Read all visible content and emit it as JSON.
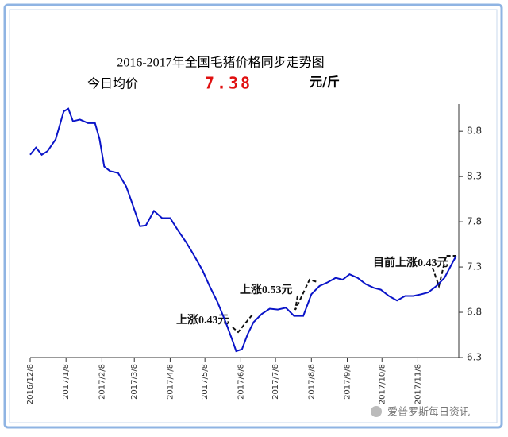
{
  "chart_data": {
    "type": "line",
    "title": "2016-2017年全国毛猪价格同步走势图",
    "price_label": "今日均价",
    "price": "7.38",
    "price_unit": "元/斤",
    "annotations": [
      "上涨0.43元",
      "上涨0.53元",
      "目前上涨0.43元"
    ],
    "watermark": "爱普罗斯每日资讯",
    "x": [
      "2016/12/8",
      "2016/12/13",
      "2016/12/18",
      "2016/12/23",
      "2016/12/30",
      "2017/1/6",
      "2017/1/10",
      "2017/1/14",
      "2017/1/20",
      "2017/1/27",
      "2017/2/2",
      "2017/2/6",
      "2017/2/10",
      "2017/2/15",
      "2017/2/22",
      "2017/3/1",
      "2017/3/6",
      "2017/3/13",
      "2017/3/18",
      "2017/3/25",
      "2017/4/1",
      "2017/4/8",
      "2017/4/15",
      "2017/4/22",
      "2017/4/29",
      "2017/5/6",
      "2017/5/12",
      "2017/5/19",
      "2017/5/26",
      "2017/6/1",
      "2017/6/4",
      "2017/6/9",
      "2017/6/14",
      "2017/6/19",
      "2017/6/26",
      "2017/7/3",
      "2017/7/10",
      "2017/7/17",
      "2017/7/24",
      "2017/8/1",
      "2017/8/8",
      "2017/8/15",
      "2017/8/22",
      "2017/8/29",
      "2017/9/4",
      "2017/9/10",
      "2017/9/17",
      "2017/9/24",
      "2017/10/1",
      "2017/10/7",
      "2017/10/14",
      "2017/10/21",
      "2017/10/28",
      "2017/11/4",
      "2017/11/11",
      "2017/11/17",
      "2017/11/24",
      "2017/12/1",
      "2017/12/8",
      "2017/12/11"
    ],
    "series": [
      {
        "color": "#0a14c8",
        "values": [
          8.54,
          8.62,
          8.54,
          8.58,
          8.71,
          9.02,
          9.05,
          8.91,
          8.93,
          8.89,
          8.89,
          8.71,
          8.41,
          8.36,
          8.34,
          8.19,
          8.01,
          7.75,
          7.76,
          7.92,
          7.84,
          7.84,
          7.7,
          7.57,
          7.42,
          7.26,
          7.09,
          6.91,
          6.69,
          6.48,
          6.37,
          6.39,
          6.56,
          6.69,
          6.78,
          6.84,
          6.83,
          6.85,
          6.76,
          6.76,
          7.0,
          7.09,
          7.13,
          7.18,
          7.16,
          7.22,
          7.18,
          7.11,
          7.07,
          7.05,
          6.98,
          6.93,
          6.98,
          6.98,
          7.0,
          7.02,
          7.09,
          7.18,
          7.35,
          7.42
        ]
      }
    ],
    "xticks": [
      "2016/12/8",
      "2017/1/8",
      "2017/2/8",
      "2017/3/8",
      "2017/4/8",
      "2017/5/8",
      "2017/6/8",
      "2017/7/8",
      "2017/8/8",
      "2017/9/8",
      "2017/10/8",
      "2017/11/8"
    ],
    "ylim": [
      6.3,
      9.1
    ],
    "yticks": [
      {
        "value": 6.3,
        "label": "6.3"
      },
      {
        "value": 6.8,
        "label": "6.8"
      },
      {
        "value": 7.3,
        "label": "7.3"
      },
      {
        "value": 7.8,
        "label": "7.8"
      },
      {
        "value": 8.3,
        "label": "8.3"
      },
      {
        "value": 8.8,
        "label": "8.8"
      }
    ]
  }
}
